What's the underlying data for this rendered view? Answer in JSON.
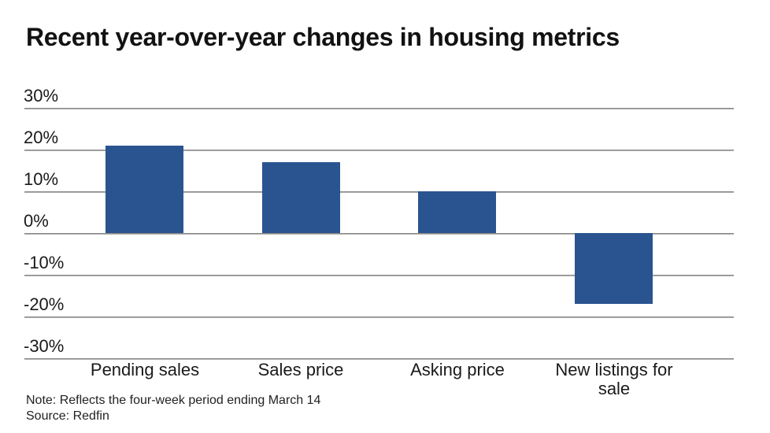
{
  "title": "Recent year-over-year changes in housing metrics",
  "note": "Note: Reflects the four-week period ending March 14",
  "source": "Source: Redfin",
  "colors": {
    "bar": "#2A5490",
    "gridline": "#8a8a8a",
    "gridline_light": "#cfcfcf",
    "title_text": "#121212",
    "axis_text": "#1a1a1a",
    "background": "#ffffff"
  },
  "chart_data": {
    "type": "bar",
    "title": "Recent year-over-year changes in housing metrics",
    "categories": [
      "Pending sales",
      "Sales price",
      "Asking price",
      "New listings for sale"
    ],
    "values": [
      21,
      17,
      10,
      -17
    ],
    "unit": "%",
    "xlabel": "",
    "ylabel": "",
    "ylim": [
      -30,
      30
    ],
    "ytick_step": 10,
    "yticks": [
      "30%",
      "20%",
      "10%",
      "0%",
      "-10%",
      "-20%",
      "-30%"
    ],
    "grid": true,
    "legend": false,
    "bar_color": "#2A5490",
    "note": "Note: Reflects the four-week period ending March 14",
    "source": "Source: Redfin"
  }
}
